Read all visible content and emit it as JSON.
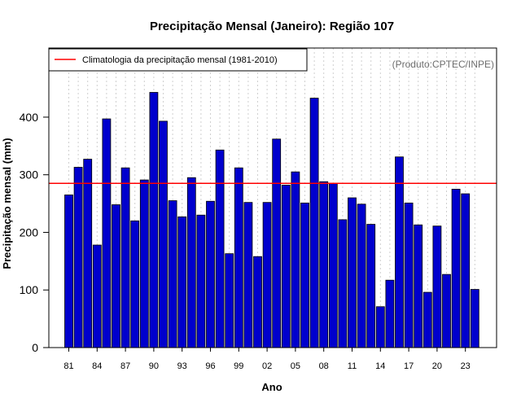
{
  "chart_data": {
    "type": "bar",
    "title": "Precipitação Mensal (Janeiro): Região 107",
    "xlabel": "Ano",
    "ylabel": "Precipitação mensal (mm)",
    "ylim": [
      0,
      520
    ],
    "yticks": [
      0,
      100,
      200,
      300,
      400
    ],
    "xtick_labels": [
      "81",
      "84",
      "87",
      "90",
      "93",
      "96",
      "99",
      "02",
      "05",
      "08",
      "11",
      "14",
      "17",
      "20",
      "23"
    ],
    "xtick_labeled_indices": [
      0,
      3,
      6,
      9,
      12,
      15,
      18,
      21,
      24,
      27,
      30,
      33,
      36,
      39,
      42
    ],
    "categories": [
      "1981",
      "1982",
      "1983",
      "1984",
      "1985",
      "1986",
      "1987",
      "1988",
      "1989",
      "1990",
      "1991",
      "1992",
      "1993",
      "1994",
      "1995",
      "1996",
      "1997",
      "1998",
      "1999",
      "2000",
      "2001",
      "2002",
      "2003",
      "2004",
      "2005",
      "2006",
      "2007",
      "2008",
      "2009",
      "2010",
      "2011",
      "2012",
      "2013",
      "2014",
      "2015",
      "2016",
      "2017",
      "2018",
      "2019",
      "2020",
      "2021",
      "2022",
      "2023",
      "2024"
    ],
    "values": [
      265,
      313,
      327,
      178,
      397,
      248,
      312,
      220,
      291,
      443,
      393,
      255,
      227,
      295,
      230,
      254,
      343,
      163,
      312,
      252,
      158,
      252,
      362,
      282,
      305,
      251,
      433,
      288,
      285,
      222,
      260,
      249,
      214,
      71,
      117,
      331,
      251,
      213,
      96,
      211,
      127,
      275,
      267,
      101
    ],
    "bar_color": "#0000cd",
    "reference_line": {
      "label": "Climatologia da precipitação mensal (1981-2010)",
      "value": 285,
      "color": "#ff0000"
    },
    "legend_position": "top-left",
    "grid": "vertical-dotted",
    "source_note": "(Produto:CPTEC/INPE)"
  }
}
